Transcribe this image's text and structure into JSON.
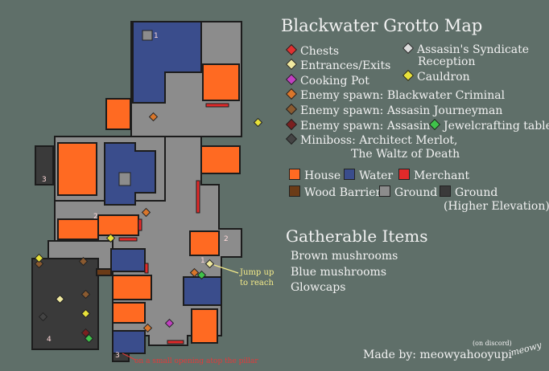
{
  "title": "Blackwater Grotto Map",
  "legend": {
    "chests": "Chests",
    "entrances": "Entrances/Exits",
    "cooking_pot": "Cooking Pot",
    "enemy_criminal": "Enemy spawn: Blackwater Criminal",
    "enemy_journeyman": "Enemy spawn: Assasin Journeyman",
    "enemy_assasin": "Enemy spawn: Assasin",
    "jewelcrafting": "Jewelcrafting table",
    "miniboss_line1": "Miniboss: Architect Merlot,",
    "miniboss_line2": "The Waltz of Death",
    "syndicate_line1": "Assasin's Syndicate",
    "syndicate_line2": "Reception",
    "cauldron": "Cauldron",
    "house": "House",
    "water": "Water",
    "merchant": "Merchant",
    "wood_barrier": "Wood Barrier",
    "ground": "Ground",
    "ground_high_line1": "Ground",
    "ground_high_line2": "(Higher Elevation)"
  },
  "gatherable": {
    "title": "Gatherable Items",
    "items": [
      "Brown mushrooms",
      "Blue mushrooms",
      "Glowcaps"
    ]
  },
  "annotations": {
    "jump_line1": "Jump up",
    "jump_line2": "to reach",
    "opening": "on a small opening atop the pillar"
  },
  "credit": {
    "made_by": "Made by: meowyahooyupi",
    "on_discord": "(on discord)",
    "signature": "meowy"
  },
  "markers": {
    "one": "1",
    "two": "2",
    "three": "3",
    "four": "4"
  },
  "colors": {
    "background": "#5f6f69",
    "ground": "#8c8c8c",
    "ground_high": "#3a3a3a",
    "house": "#ff6a22",
    "water": "#3a4d8c",
    "merchant": "#e22a2a",
    "wood_barrier": "#6b3b17",
    "chest": "#e03030",
    "entrance": "#f0e9a0",
    "cooking_pot": "#c040c0",
    "enemy_criminal": "#d9762b",
    "enemy_journeyman": "#8a5a30",
    "enemy_assasin": "#7a2020",
    "jewelcrafting": "#3fc24a",
    "miniboss": "#444444",
    "syndicate": "#dcdcdc",
    "cauldron": "#e8e23a"
  }
}
